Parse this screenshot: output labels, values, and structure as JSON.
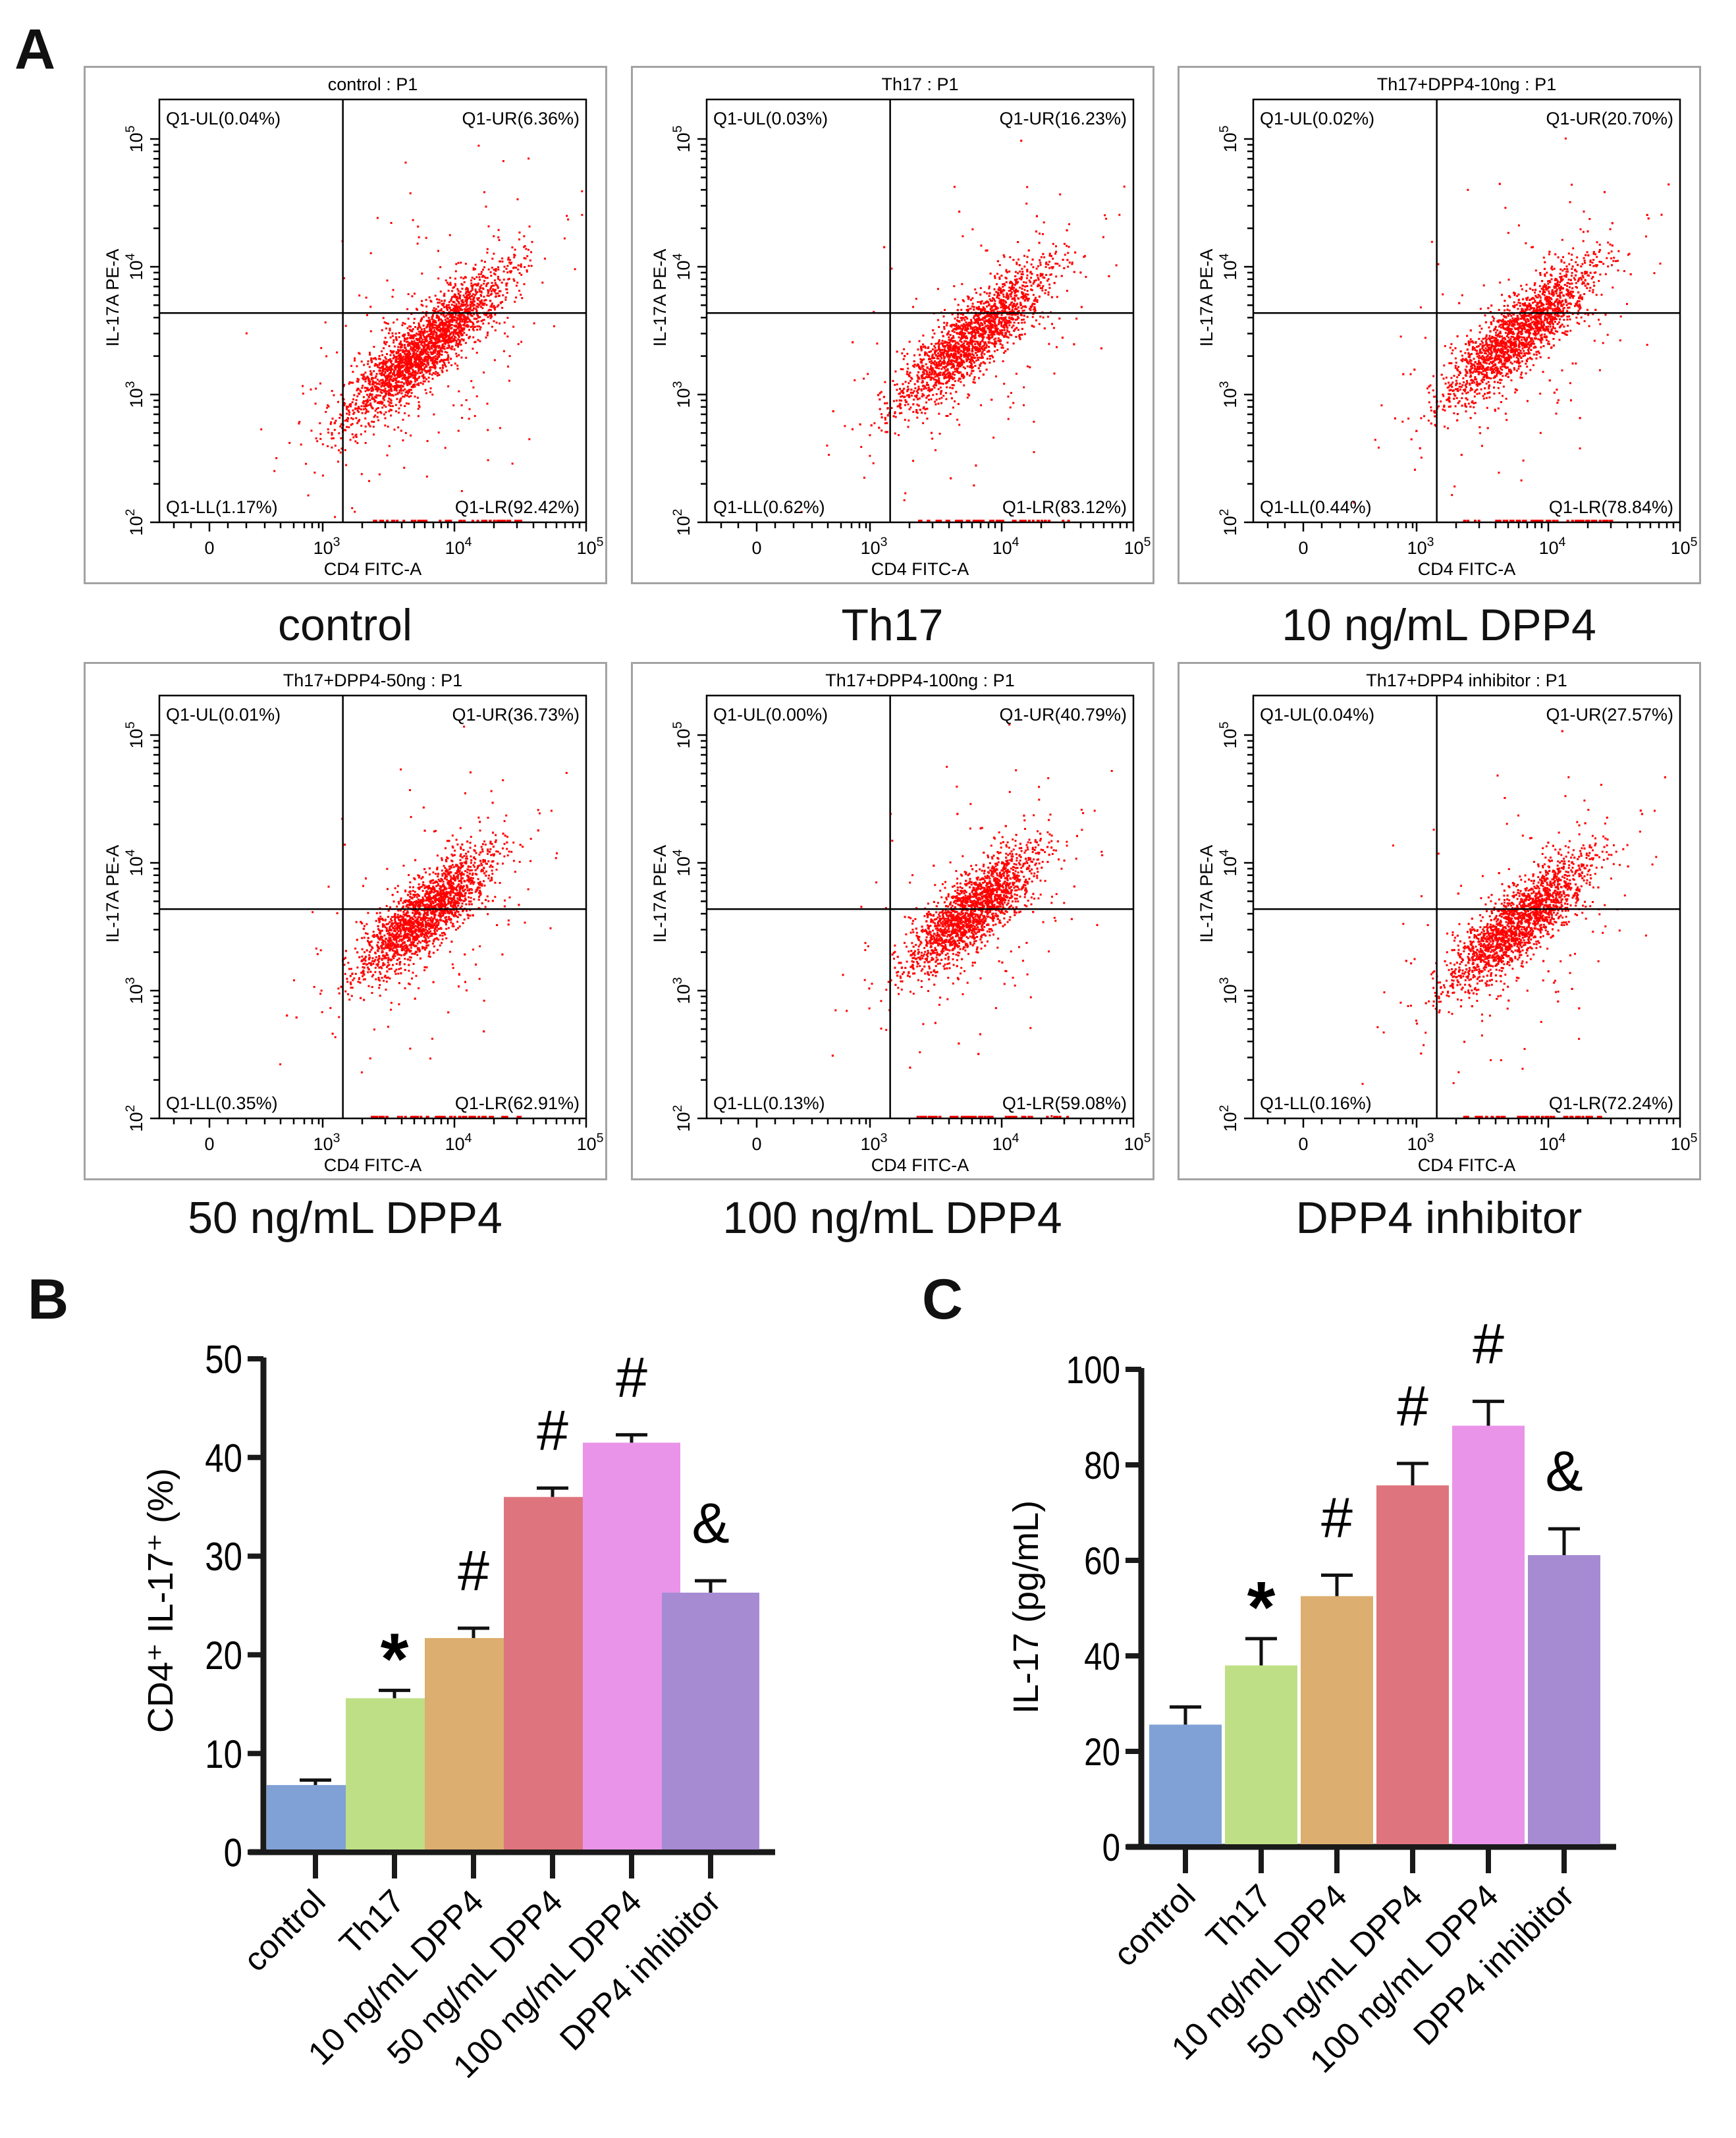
{
  "panels": {
    "a": "A",
    "b": "B",
    "c": "C"
  },
  "flow_colors": {
    "dots": "#ff0000",
    "frame": "#a3a3a3",
    "axis": "#000000"
  },
  "flow_axes": {
    "xlabel": "CD4 FITC-A",
    "ylabel": "IL-17A PE-A",
    "x_ticks": [
      "0",
      "10^3",
      "10^4",
      "10^5"
    ],
    "y_ticks": [
      "10^2",
      "10^3",
      "10^4",
      "10^5"
    ]
  },
  "flow_plots": [
    {
      "title": "control : P1",
      "caption": "control",
      "UL": "Q1-UL(0.04%)",
      "UR": "Q1-UR(6.36%)",
      "LL": "Q1-LL(1.17%)",
      "LR": "Q1-LR(92.42%)",
      "ur_pct": 6.36
    },
    {
      "title": "Th17 : P1",
      "caption": "Th17",
      "UL": "Q1-UL(0.03%)",
      "UR": "Q1-UR(16.23%)",
      "LL": "Q1-LL(0.62%)",
      "LR": "Q1-LR(83.12%)",
      "ur_pct": 16.23
    },
    {
      "title": "Th17+DPP4-10ng : P1",
      "caption": "10 ng/mL DPP4",
      "UL": "Q1-UL(0.02%)",
      "UR": "Q1-UR(20.70%)",
      "LL": "Q1-LL(0.44%)",
      "LR": "Q1-LR(78.84%)",
      "ur_pct": 20.7
    },
    {
      "title": "Th17+DPP4-50ng : P1",
      "caption": "50 ng/mL DPP4",
      "UL": "Q1-UL(0.01%)",
      "UR": "Q1-UR(36.73%)",
      "LL": "Q1-LL(0.35%)",
      "LR": "Q1-LR(62.91%)",
      "ur_pct": 36.73
    },
    {
      "title": "Th17+DPP4-100ng : P1",
      "caption": "100 ng/mL DPP4",
      "UL": "Q1-UL(0.00%)",
      "UR": "Q1-UR(40.79%)",
      "LL": "Q1-LL(0.13%)",
      "LR": "Q1-LR(59.08%)",
      "ur_pct": 40.79
    },
    {
      "title": "Th17+DPP4 inhibitor : P1",
      "caption": "DPP4 inhibitor",
      "UL": "Q1-UL(0.04%)",
      "UR": "Q1-UR(27.57%)",
      "LL": "Q1-LL(0.16%)",
      "LR": "Q1-LR(72.24%)",
      "ur_pct": 27.57
    }
  ],
  "chart_data": [
    {
      "type": "bar",
      "panel": "B",
      "title": "",
      "xlabel": "",
      "ylabel": "CD4⁺ IL-17⁺ (%)",
      "categories": [
        "control",
        "Th17",
        "10 ng/mL DPP4",
        "50 ng/mL DPP4",
        "100 ng/mL DPP4",
        "DPP4 inhibitor"
      ],
      "values": [
        6.8,
        15.6,
        21.7,
        36.0,
        41.5,
        26.3
      ],
      "error_upper": [
        7.3,
        16.4,
        22.7,
        36.9,
        42.3,
        27.5
      ],
      "annotations": [
        "",
        "*",
        "#",
        "#",
        "#",
        "&"
      ],
      "colors": [
        "#7fa1d6",
        "#bfdf87",
        "#dcae6f",
        "#de757e",
        "#e994e8",
        "#a68bd3"
      ],
      "yticks": [
        "0",
        "10",
        "20",
        "30",
        "40",
        "50"
      ],
      "ylim": [
        0,
        50
      ],
      "grid": false
    },
    {
      "type": "bar",
      "panel": "C",
      "title": "",
      "xlabel": "",
      "ylabel": "IL-17 (pg/mL)",
      "categories": [
        "control",
        "Th17",
        "10 ng/mL DPP4",
        "50 ng/mL DPP4",
        "100 ng/mL DPP4",
        "DPP4 inhibitor"
      ],
      "values": [
        25.6,
        38.0,
        52.5,
        75.7,
        88.2,
        61.1
      ],
      "error_upper": [
        29.3,
        43.6,
        56.9,
        80.3,
        93.3,
        66.6
      ],
      "annotations": [
        "",
        "*",
        "#",
        "#",
        "#",
        "&"
      ],
      "colors": [
        "#7fa1d6",
        "#bfdf87",
        "#dcae6f",
        "#de757e",
        "#e994e8",
        "#a68bd3"
      ],
      "yticks": [
        "0",
        "20",
        "40",
        "60",
        "80",
        "100"
      ],
      "ylim": [
        0,
        100
      ],
      "grid": false
    }
  ]
}
